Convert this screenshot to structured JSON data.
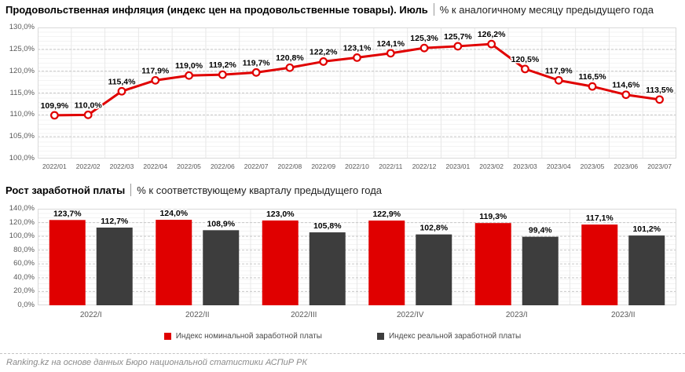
{
  "footer": {
    "source": "Ranking.kz на основе данных Бюро национальной статистики АСПиР РК"
  },
  "colors": {
    "accent_red": "#e00000",
    "dark_gray": "#3d3d3d",
    "grid_border": "#d9d9d9",
    "grid_dashed": "#c9c9c9",
    "axis_text": "#595959"
  },
  "chart_data": [
    {
      "type": "line",
      "title_bold": "Продовольственная инфляция (индекс цен на продовольственные товары). Июль",
      "title_note": "% к аналогичному месяцу предыдущего года",
      "categories": [
        "2022/01",
        "2022/02",
        "2022/03",
        "2022/04",
        "2022/05",
        "2022/06",
        "2022/07",
        "2022/08",
        "2022/09",
        "2022/10",
        "2022/11",
        "2022/12",
        "2023/01",
        "2023/02",
        "2023/03",
        "2023/04",
        "2023/05",
        "2023/06",
        "2023/07"
      ],
      "values": [
        109.9,
        110.0,
        115.4,
        117.9,
        119.0,
        119.2,
        119.7,
        120.8,
        122.2,
        123.1,
        124.1,
        125.3,
        125.7,
        126.2,
        120.5,
        117.9,
        116.5,
        114.6,
        113.5
      ],
      "ylim": [
        100,
        130
      ],
      "ytick_step": 5,
      "line_color": "#e00000",
      "marker": "circle-white-fill-red-stroke",
      "grid": "horizontal-dashed-vertical-solid",
      "legend_position": "none"
    },
    {
      "type": "bar",
      "title_bold": "Рост заработной платы",
      "title_note": "% к соответствующему кварталу предыдущего года",
      "categories": [
        "2022/I",
        "2022/II",
        "2022/III",
        "2022/IV",
        "2023/I",
        "2023/II"
      ],
      "series": [
        {
          "name": "Индекс номинальной заработной платы",
          "color": "#e00000",
          "values": [
            123.7,
            124.0,
            123.0,
            122.9,
            119.3,
            117.1
          ]
        },
        {
          "name": "Индекс реальной заработной платы",
          "color": "#3d3d3d",
          "values": [
            112.7,
            108.9,
            105.8,
            102.8,
            99.4,
            101.2
          ]
        }
      ],
      "ylim": [
        0,
        140
      ],
      "ytick_step": 20,
      "grid": "horizontal-dashed-vertical-solid",
      "legend_position": "bottom"
    }
  ]
}
